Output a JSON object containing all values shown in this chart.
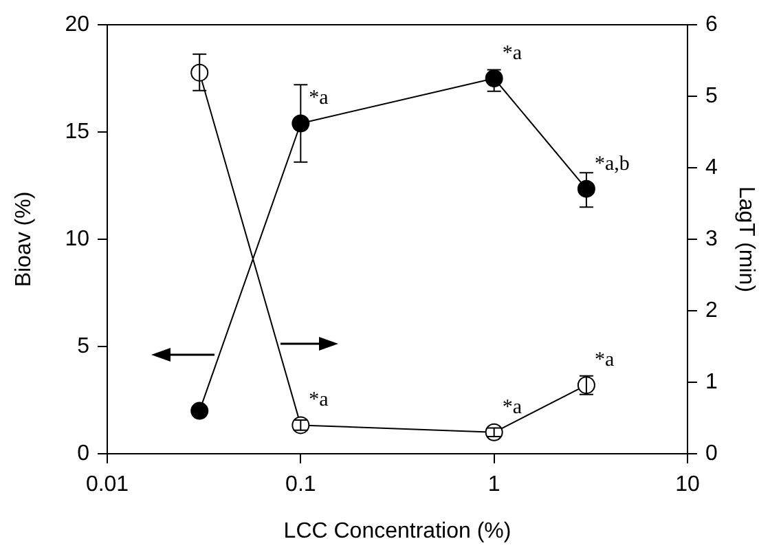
{
  "chart_data": {
    "type": "line",
    "xlabel": "LCC Concentration (%)",
    "ylabel": "Bioav (%)",
    "y2label": "LagT (min)",
    "x": [
      0.03,
      0.1,
      1,
      3
    ],
    "series": [
      {
        "color": "#000000",
        "values": [
          2.0,
          15.4,
          17.5,
          12.35
        ],
        "errors": [
          null,
          [
            13.6,
            17.2
          ],
          [
            16.9,
            17.9
          ],
          [
            11.5,
            13.1
          ]
        ]
      },
      {
        "color": "#000000",
        "axis": "y2",
        "values": [
          5.33,
          0.4,
          0.3,
          0.96
        ],
        "errors": [
          [
            5.08,
            5.59
          ],
          [
            0.33,
            0.47
          ],
          [
            0.24,
            0.36
          ],
          [
            0.83,
            1.09
          ]
        ]
      }
    ],
    "log": "x",
    "xlim": [
      0.01,
      10
    ],
    "xticks": [
      0.01,
      0.1,
      1,
      10
    ],
    "ylim": [
      0,
      20
    ],
    "yticks": [
      0,
      5,
      10,
      15,
      20
    ],
    "y2lim": [
      0,
      6
    ],
    "y2ticks": [
      0,
      1,
      2,
      3,
      4,
      5,
      6
    ],
    "grid": false,
    "legend": false,
    "marker": "circle",
    "line_style": "solid",
    "annotations": [
      {
        "text": "*a",
        "x": 0.1,
        "y": 15.4
      },
      {
        "text": "*a",
        "x": 1,
        "y": 17.5
      },
      {
        "text": "*a,b",
        "x": 3,
        "y": 12.35
      },
      {
        "text": "*a",
        "x": 0.1,
        "y": 1.33
      },
      {
        "text": "*a",
        "x": 1,
        "y": 1.0
      },
      {
        "text": "*a",
        "x": 3,
        "y": 3.2
      }
    ]
  }
}
